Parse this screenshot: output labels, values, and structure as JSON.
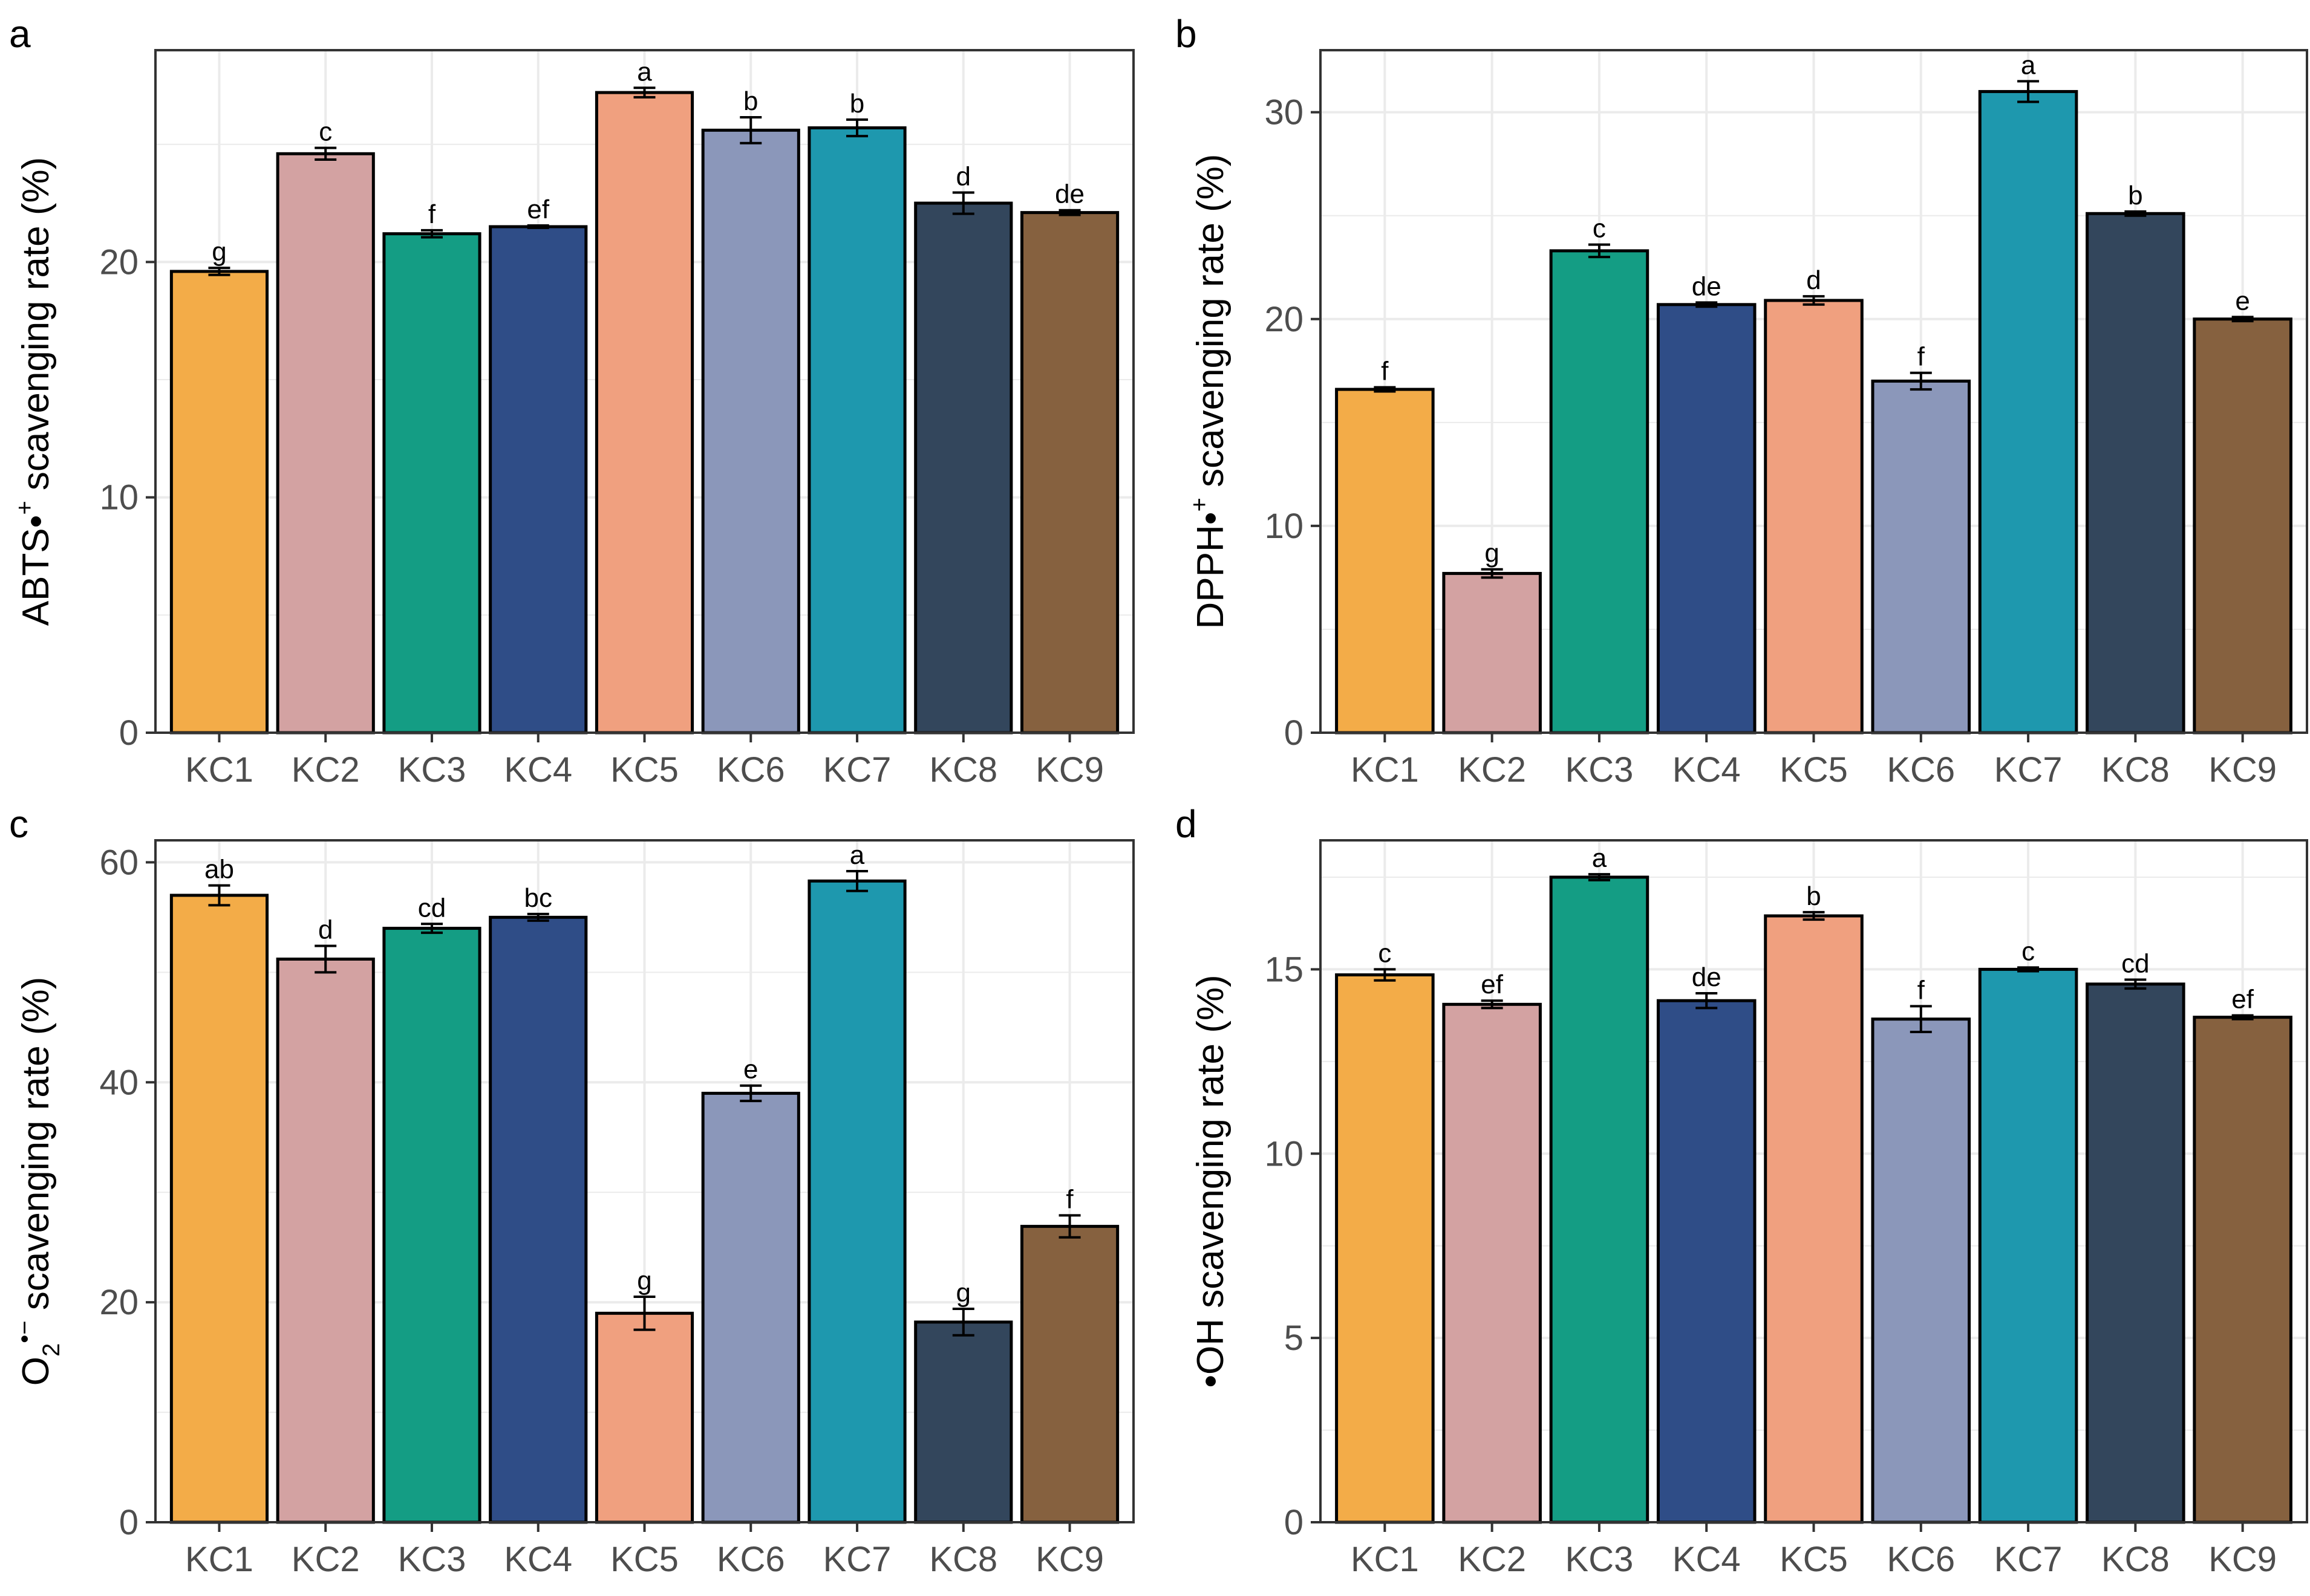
{
  "figure": {
    "chart_data": [
      {
        "panel": "a",
        "type": "bar",
        "categories": [
          "KC1",
          "KC2",
          "KC3",
          "KC4",
          "KC5",
          "KC6",
          "KC7",
          "KC8",
          "KC9"
        ],
        "values": [
          19.6,
          24.6,
          21.2,
          21.5,
          27.2,
          25.6,
          25.7,
          22.5,
          22.1
        ],
        "errors": [
          0.15,
          0.25,
          0.15,
          0.05,
          0.2,
          0.55,
          0.35,
          0.45,
          0.1
        ],
        "sig_labels": [
          "g",
          "c",
          "f",
          "ef",
          "a",
          "b",
          "b",
          "d",
          "de"
        ],
        "ylabel": "ABTS•⁺ scavenging rate (%)",
        "ylabel_parts": [
          "ABTS•",
          "+",
          " scavenging rate (%)"
        ],
        "ylim": [
          0,
          29
        ],
        "yticks": [
          0,
          10,
          20
        ]
      },
      {
        "panel": "b",
        "type": "bar",
        "categories": [
          "KC1",
          "KC2",
          "KC3",
          "KC4",
          "KC5",
          "KC6",
          "KC7",
          "KC8",
          "KC9"
        ],
        "values": [
          16.6,
          7.7,
          23.3,
          20.7,
          20.9,
          17.0,
          31.0,
          25.1,
          20.0
        ],
        "errors": [
          0.1,
          0.2,
          0.3,
          0.1,
          0.2,
          0.4,
          0.5,
          0.1,
          0.1
        ],
        "sig_labels": [
          "f",
          "g",
          "c",
          "de",
          "d",
          "f",
          "a",
          "b",
          "e"
        ],
        "ylabel": "DPPH•⁺ scavenging rate (%)",
        "ylabel_parts": [
          "DPPH•",
          "+",
          " scavenging rate (%)"
        ],
        "ylim": [
          0,
          33
        ],
        "yticks": [
          0,
          10,
          20,
          30
        ]
      },
      {
        "panel": "c",
        "type": "bar",
        "categories": [
          "KC1",
          "KC2",
          "KC3",
          "KC4",
          "KC5",
          "KC6",
          "KC7",
          "KC8",
          "KC9"
        ],
        "values": [
          57.0,
          51.2,
          54.0,
          55.0,
          19.0,
          39.0,
          58.3,
          18.2,
          26.9
        ],
        "errors": [
          0.9,
          1.2,
          0.4,
          0.3,
          1.5,
          0.7,
          0.9,
          1.2,
          1.0
        ],
        "sig_labels": [
          "ab",
          "d",
          "cd",
          "bc",
          "g",
          "e",
          "a",
          "g",
          "f"
        ],
        "ylabel": "O₂•⁻ scavenging rate (%)",
        "ylabel_parts": [
          "O",
          "2",
          "•−",
          " scavenging rate (%)"
        ],
        "ylim": [
          0,
          62
        ],
        "yticks": [
          0,
          20,
          40,
          60
        ]
      },
      {
        "panel": "d",
        "type": "bar",
        "categories": [
          "KC1",
          "KC2",
          "KC3",
          "KC4",
          "KC5",
          "KC6",
          "KC7",
          "KC8",
          "KC9"
        ],
        "values": [
          14.85,
          14.05,
          17.5,
          14.15,
          16.45,
          13.65,
          15.0,
          14.6,
          13.7
        ],
        "errors": [
          0.15,
          0.1,
          0.08,
          0.2,
          0.1,
          0.35,
          0.05,
          0.12,
          0.05
        ],
        "sig_labels": [
          "c",
          "ef",
          "a",
          "de",
          "b",
          "f",
          "c",
          "cd",
          "ef"
        ],
        "ylabel": "•OH scavenging rate (%)",
        "ylim": [
          0,
          18.5
        ],
        "yticks": [
          0,
          5,
          10,
          15
        ]
      }
    ],
    "bar_colors": [
      "#F3AC48",
      "#D3A2A2",
      "#149D84",
      "#2F4D87",
      "#F0A07F",
      "#8B97BA",
      "#1E98AE",
      "#33465C",
      "#86613F"
    ],
    "panel_bg": "#ffffff",
    "grid_color": "#EBEBEB",
    "frame_color": "#333333"
  }
}
